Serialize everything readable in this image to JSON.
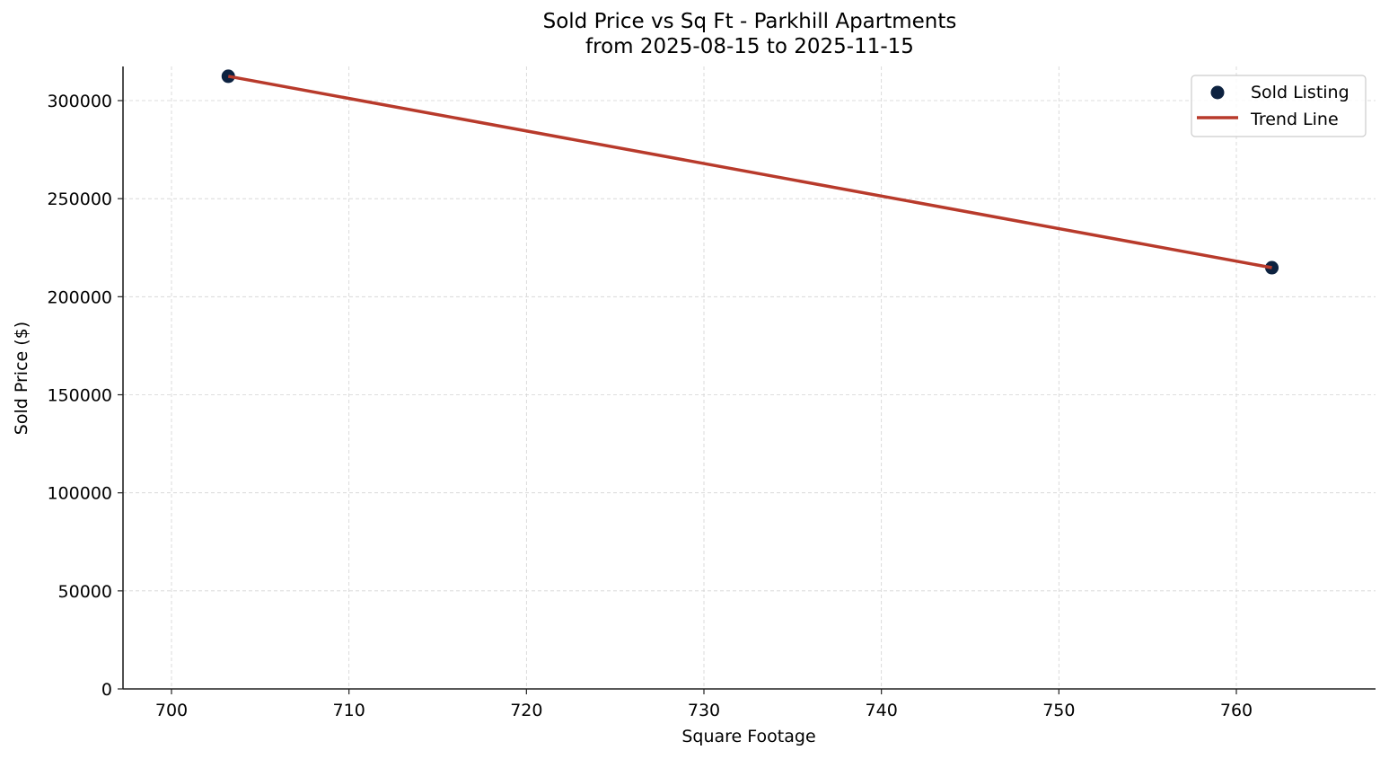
{
  "chart_data": {
    "type": "scatter",
    "title": "Sold Price vs Sq Ft - Parkhill Apartments",
    "subtitle": "from 2025-08-15 to 2025-11-15",
    "xlabel": "Square Footage",
    "ylabel": "Sold Price ($)",
    "xlim": [
      697.3,
      767.8
    ],
    "ylim": [
      0,
      317000
    ],
    "xticks": [
      700,
      710,
      720,
      730,
      740,
      750,
      760
    ],
    "yticks": [
      0,
      50000,
      100000,
      150000,
      200000,
      250000,
      300000
    ],
    "grid": true,
    "legend_position": "upper right",
    "series": [
      {
        "name": "Sold Listing",
        "kind": "scatter",
        "color": "#0d2240",
        "points": [
          {
            "x": 703.2,
            "y": 312400
          },
          {
            "x": 762.0,
            "y": 214800
          }
        ]
      },
      {
        "name": "Trend Line",
        "kind": "line",
        "color": "#b83a2b",
        "points": [
          {
            "x": 703.2,
            "y": 312400
          },
          {
            "x": 762.0,
            "y": 214800
          }
        ]
      }
    ]
  },
  "legend": {
    "items": [
      {
        "label": "Sold Listing"
      },
      {
        "label": "Trend Line"
      }
    ]
  }
}
